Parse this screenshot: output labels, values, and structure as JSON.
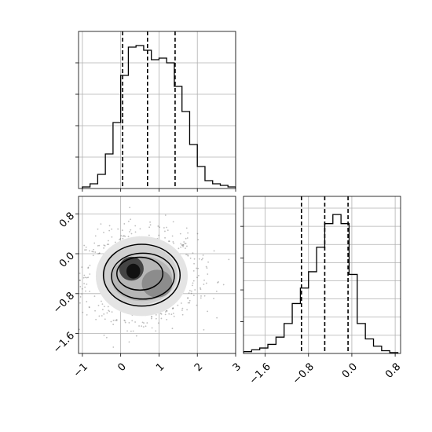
{
  "chart_data": [
    {
      "type": "histogram",
      "panel": "top-left (param 1 marginal)",
      "xlim": [
        -1.1,
        3.0
      ],
      "bin_edges": [
        -1.0,
        -0.8,
        -0.6,
        -0.4,
        -0.2,
        0.0,
        0.2,
        0.4,
        0.6,
        0.8,
        1.0,
        1.2,
        1.4,
        1.6,
        1.8,
        2.0,
        2.2,
        2.4,
        2.6,
        2.8,
        3.0
      ],
      "counts": [
        0.01,
        0.03,
        0.09,
        0.22,
        0.42,
        0.72,
        0.9,
        0.91,
        0.88,
        0.82,
        0.83,
        0.8,
        0.65,
        0.49,
        0.28,
        0.14,
        0.05,
        0.03,
        0.02,
        0.01
      ],
      "ylim": [
        0,
        1.0
      ],
      "quantiles": [
        0.05,
        0.7,
        1.42
      ],
      "grid": true,
      "ytick_labels_shown": false
    },
    {
      "type": "heatmap",
      "panel": "bottom-left (param 1 vs param 2 joint)",
      "xlim": [
        -1.1,
        3.0
      ],
      "ylim": [
        -2.0,
        1.15
      ],
      "xticks": [
        -1,
        0,
        1,
        2,
        3
      ],
      "xtick_labels": [
        "−1",
        "0",
        "1",
        "2",
        "3"
      ],
      "yticks": [
        0.8,
        0.0,
        -0.8,
        -1.6
      ],
      "ytick_labels": [
        "0.8",
        "0.0",
        "−0.8",
        "−1.6"
      ],
      "center": [
        0.55,
        -0.45
      ],
      "contour_levels": [
        "outer",
        "middle",
        "inner"
      ],
      "scatter": true,
      "grid": true
    },
    {
      "type": "histogram",
      "panel": "bottom-right (param 2 marginal)",
      "xlim": [
        -2.0,
        0.9
      ],
      "bin_edges": [
        -2.0,
        -1.85,
        -1.7,
        -1.55,
        -1.4,
        -1.25,
        -1.1,
        -0.95,
        -0.8,
        -0.65,
        -0.5,
        -0.35,
        -0.2,
        -0.05,
        0.1,
        0.25,
        0.4,
        0.55,
        0.7,
        0.85
      ],
      "counts": [
        0.02,
        0.04,
        0.06,
        0.1,
        0.18,
        0.33,
        0.55,
        0.72,
        0.9,
        1.17,
        1.43,
        1.53,
        1.43,
        0.87,
        0.33,
        0.16,
        0.08,
        0.03,
        0.01
      ],
      "ylim": [
        0,
        1.73
      ],
      "quantiles": [
        -0.93,
        -0.5,
        -0.07
      ],
      "xticks": [
        -1.6,
        -0.8,
        0.0,
        0.8
      ],
      "xtick_labels": [
        "−1.6",
        "−0.8",
        "0.0",
        "0.8"
      ],
      "grid": true,
      "ytick_labels_shown": false
    }
  ]
}
